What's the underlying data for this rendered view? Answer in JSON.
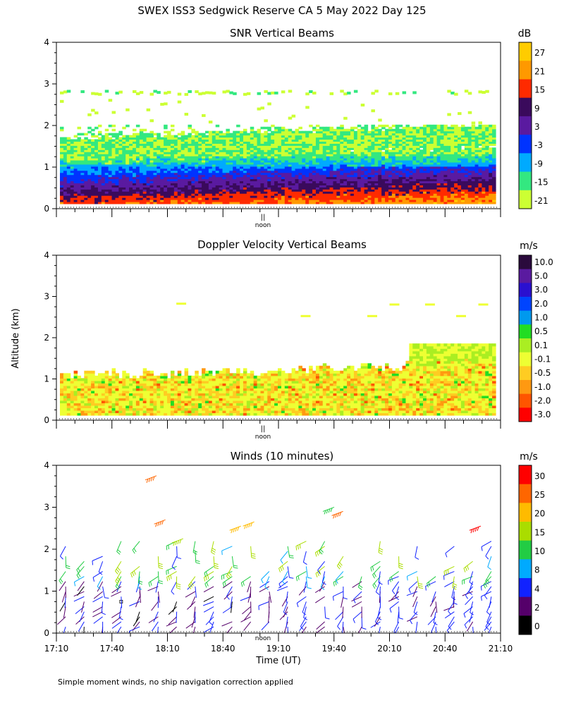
{
  "page": {
    "title": "SWEX ISS3 Sedgwick Reserve CA   5 May 2022 Day 125",
    "ylabel": "Altitude (km)",
    "xlabel": "Time (UT)",
    "footnote": "Simple moment winds, no ship navigation correction applied",
    "noon_label": "noon",
    "noon_marker": "||"
  },
  "chart_data": [
    {
      "type": "heatmap",
      "title": "SNR Vertical Beams",
      "xlabel": "Time (UT)",
      "ylabel": "Altitude (km)",
      "x_range_ut": [
        "17:10",
        "21:10"
      ],
      "ylim": [
        0,
        4
      ],
      "yticks": [
        "0",
        "1",
        "2",
        "3",
        "4"
      ],
      "colorbar": {
        "unit": "dB",
        "labels": [
          "27",
          "21",
          "15",
          "9",
          "3",
          "-3",
          "-9",
          "-15",
          "-21"
        ],
        "colors": [
          "#ffcc00",
          "#ff9900",
          "#ff2a00",
          "#3a0a5c",
          "#5a1aa0",
          "#0033ff",
          "#00aaff",
          "#33e880",
          "#ccff33"
        ]
      },
      "layers": [
        {
          "from_km": 0.1,
          "to_km": 0.3,
          "value_db": 15
        },
        {
          "from_km": 0.3,
          "to_km": 0.6,
          "value_db": 9
        },
        {
          "from_km": 0.6,
          "to_km": 0.8,
          "value_db": 3
        },
        {
          "from_km": 0.8,
          "to_km": 1.1,
          "value_db": -9
        },
        {
          "from_km": 1.1,
          "to_km": 1.3,
          "value_db": -15
        },
        {
          "from_km": 1.3,
          "to_km": 1.8,
          "value_db": -21
        },
        {
          "from_km": 2.7,
          "to_km": 2.8,
          "value_db": -15
        }
      ]
    },
    {
      "type": "heatmap",
      "title": "Doppler Velocity Vertical Beams",
      "xlabel": "Time (UT)",
      "ylabel": "Altitude (km)",
      "x_range_ut": [
        "17:10",
        "21:10"
      ],
      "ylim": [
        0,
        4
      ],
      "yticks": [
        "0",
        "1",
        "2",
        "3",
        "4"
      ],
      "colorbar": {
        "unit": "m/s",
        "labels": [
          "10.0",
          "5.0",
          "3.0",
          "2.0",
          "1.0",
          "0.5",
          "0.1",
          "-0.1",
          "-0.5",
          "-1.0",
          "-2.0",
          "-3.0"
        ],
        "colors": [
          "#2a0a3c",
          "#5a1aa0",
          "#2a10d0",
          "#0044ff",
          "#0099ee",
          "#22dd22",
          "#aaee22",
          "#eeff33",
          "#ffcc22",
          "#ff9911",
          "#ff5500",
          "#ff0000"
        ]
      },
      "layers": [
        {
          "from_km": 0.1,
          "to_km": 1.3,
          "value_ms": -0.1
        },
        {
          "from_km": 1.3,
          "to_km": 1.8,
          "value_ms": 0.1
        }
      ]
    },
    {
      "type": "scatter",
      "title": "Winds (10 minutes)",
      "xlabel": "Time (UT)",
      "ylabel": "Altitude (km)",
      "x_range_ut": [
        "17:10",
        "21:10"
      ],
      "xticks": [
        "17:10",
        "17:40",
        "18:10",
        "18:40",
        "19:10",
        "19:40",
        "20:10",
        "20:40",
        "21:10"
      ],
      "ylim": [
        0,
        4
      ],
      "yticks": [
        "0",
        "1",
        "2",
        "3",
        "4"
      ],
      "colorbar": {
        "unit": "m/s",
        "labels": [
          "30",
          "25",
          "20",
          "15",
          "10",
          "8",
          "4",
          "2",
          "0"
        ],
        "colors": [
          "#ff0000",
          "#ff6600",
          "#ffbb00",
          "#aadd00",
          "#22cc44",
          "#00aaff",
          "#1122ff",
          "#55006a",
          "#000000"
        ]
      },
      "barb_columns_ut": [
        "17:15",
        "17:25",
        "17:35",
        "17:45",
        "17:55",
        "18:05",
        "18:15",
        "18:25",
        "18:35",
        "18:45",
        "18:55",
        "19:05",
        "19:15",
        "19:25",
        "19:35",
        "19:45",
        "19:55",
        "20:05",
        "20:15",
        "20:25",
        "20:35",
        "20:45",
        "20:55",
        "21:05"
      ]
    }
  ]
}
